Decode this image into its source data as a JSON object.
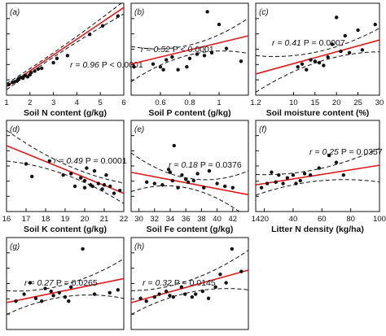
{
  "chart_data": [
    {
      "panel": "(a)",
      "type": "scatter",
      "xlabel": "Soil N content (g/kg)",
      "xlim": [
        1,
        6
      ],
      "xticks": [
        1,
        2,
        3,
        4,
        5,
        6
      ],
      "ylim": [
        0,
        6.5
      ],
      "annotation": {
        "r": "r = 0.96",
        "p": "P < 0.0001"
      },
      "fit": {
        "x0": 1,
        "y0": 0.6,
        "x1": 6,
        "y1": 6.2
      },
      "ci": {
        "edge": 0.45,
        "center": 0.15,
        "xc": 2.6
      },
      "points": [
        [
          1.1,
          0.75
        ],
        [
          1.25,
          0.9
        ],
        [
          1.35,
          0.95
        ],
        [
          1.45,
          1.0
        ],
        [
          1.5,
          1.15
        ],
        [
          1.6,
          1.25
        ],
        [
          1.7,
          1.2
        ],
        [
          1.75,
          1.35
        ],
        [
          1.8,
          1.4
        ],
        [
          1.9,
          1.3
        ],
        [
          2.0,
          1.45
        ],
        [
          2.05,
          1.6
        ],
        [
          2.2,
          1.7
        ],
        [
          2.35,
          1.85
        ],
        [
          2.5,
          1.9
        ],
        [
          3.0,
          2.3
        ],
        [
          3.15,
          2.6
        ],
        [
          3.6,
          2.8
        ],
        [
          4.55,
          4.3
        ],
        [
          5.1,
          4.9
        ],
        [
          5.75,
          5.6
        ]
      ]
    },
    {
      "panel": "(b)",
      "type": "scatter",
      "xlabel": "Soil P content (g/kg)",
      "xlim": [
        0.4,
        1.2
      ],
      "xticks": [
        0.6,
        0.8,
        1.0
      ],
      "xtick_labels": [
        "0.6",
        "0.8",
        "1"
      ],
      "ylim": [
        0,
        6.5
      ],
      "annotation": {
        "r": "r = 0.52",
        "p": "P < 0.0001"
      },
      "fit": {
        "x0": 0.4,
        "y0": 2.2,
        "x1": 1.2,
        "y1": 4.2
      },
      "ci": {
        "edge": 1.25,
        "center": 0.35,
        "xc": 0.8
      },
      "points": [
        [
          0.42,
          2.0
        ],
        [
          0.55,
          2.2
        ],
        [
          0.6,
          2.0
        ],
        [
          0.62,
          1.8
        ],
        [
          0.64,
          2.5
        ],
        [
          0.68,
          2.7
        ],
        [
          0.72,
          1.8
        ],
        [
          0.78,
          2.0
        ],
        [
          0.8,
          2.6
        ],
        [
          0.85,
          2.9
        ],
        [
          0.9,
          2.8
        ],
        [
          0.92,
          5.9
        ],
        [
          0.95,
          3.0
        ],
        [
          1.0,
          5.0
        ],
        [
          1.05,
          3.3
        ],
        [
          1.15,
          2.4
        ]
      ]
    },
    {
      "panel": "(c)",
      "type": "scatter",
      "xlabel": "Soil moisture content (%)",
      "xlim": [
        1.2,
        30
      ],
      "xticks": [
        10,
        15,
        20,
        25,
        30
      ],
      "xtick_labels": [
        "10",
        "15",
        "20",
        "25",
        "30"
      ],
      "extra_tick_labels": [
        "1.2"
      ],
      "ylim": [
        0,
        6.5
      ],
      "annotation": {
        "r": "r = 0.41",
        "p": "P = 0.0007"
      },
      "fit": {
        "x0": 1.2,
        "y0": 1.5,
        "x1": 30,
        "y1": 3.9
      },
      "ci": {
        "edge": 1.3,
        "center": 0.35,
        "xc": 18
      },
      "points": [
        [
          11,
          2.0
        ],
        [
          12,
          2.2
        ],
        [
          13,
          1.8
        ],
        [
          14,
          2.5
        ],
        [
          15,
          2.4
        ],
        [
          16,
          2.3
        ],
        [
          17,
          2.1
        ],
        [
          18,
          2.7
        ],
        [
          19,
          3.6
        ],
        [
          20,
          5.5
        ],
        [
          21,
          3.1
        ],
        [
          22,
          4.2
        ],
        [
          23,
          3.0
        ],
        [
          25,
          4.6
        ],
        [
          26,
          3.2
        ],
        [
          29,
          5.0
        ]
      ]
    },
    {
      "panel": "(d)",
      "type": "scatter",
      "xlabel": "Soil K content (g/kg)",
      "xlim": [
        16,
        22
      ],
      "xticks": [
        16,
        17,
        18,
        19,
        20,
        21,
        22
      ],
      "ylim": [
        0,
        6.5
      ],
      "annotation": {
        "r": "r = 0.49",
        "p": "P = 0.0001"
      },
      "fit": {
        "x0": 16,
        "y0": 4.7,
        "x1": 22,
        "y1": 1.3
      },
      "ci": {
        "edge": 1.1,
        "center": 0.35,
        "xc": 19.5
      },
      "points": [
        [
          17.0,
          3.4
        ],
        [
          17.3,
          2.5
        ],
        [
          18.2,
          3.6
        ],
        [
          18.9,
          2.6
        ],
        [
          19.3,
          2.7
        ],
        [
          19.5,
          1.8
        ],
        [
          19.8,
          2.4
        ],
        [
          20.0,
          2.2
        ],
        [
          20.1,
          3.1
        ],
        [
          20.3,
          1.9
        ],
        [
          20.5,
          2.9
        ],
        [
          20.7,
          2.0
        ],
        [
          20.9,
          1.6
        ],
        [
          21.1,
          2.6
        ],
        [
          21.3,
          1.8
        ],
        [
          21.5,
          1.3
        ],
        [
          21.8,
          1.5
        ],
        [
          20.4,
          1.8
        ],
        [
          20.0,
          1.7
        ],
        [
          21.0,
          1.9
        ]
      ]
    },
    {
      "panel": "(e)",
      "type": "scatter",
      "xlabel": "Soil Fe content (g/kg)",
      "xlim": [
        29,
        44
      ],
      "xticks": [
        30,
        32,
        34,
        36,
        38,
        40,
        42
      ],
      "ylim": [
        0,
        6.5
      ],
      "annotation": {
        "r": "r = 0.18",
        "p": "P = 0.0376"
      },
      "fit": {
        "x0": 29,
        "y0": 2.8,
        "x1": 44,
        "y1": 1.2
      },
      "ci": {
        "edge": 1.7,
        "center": 0.35,
        "xc": 36
      },
      "points": [
        [
          31.0,
          2.1
        ],
        [
          32.0,
          2.0
        ],
        [
          33.0,
          1.9
        ],
        [
          33.8,
          3.0
        ],
        [
          34.0,
          2.8
        ],
        [
          34.3,
          2.2
        ],
        [
          35.0,
          1.7
        ],
        [
          35.5,
          2.6
        ],
        [
          36.0,
          2.3
        ],
        [
          36.3,
          2.1
        ],
        [
          37.0,
          2.2
        ],
        [
          37.5,
          2.7
        ],
        [
          38.3,
          1.7
        ],
        [
          39.0,
          2.9
        ],
        [
          40.0,
          2.0
        ],
        [
          41.0,
          1.8
        ],
        [
          42.0,
          1.7
        ],
        [
          34.5,
          4.7
        ]
      ]
    },
    {
      "panel": "(f)",
      "type": "scatter",
      "xlabel": "Litter N density (kg/ha)",
      "xlim": [
        14,
        100
      ],
      "xticks": [
        14,
        20,
        40,
        60,
        80,
        100
      ],
      "xtick_labels": [
        "14",
        "20",
        "40",
        "60",
        "80",
        "100"
      ],
      "ylim": [
        0,
        6.5
      ],
      "annotation": {
        "r": "r = 0.25",
        "p": "P = 0.0357"
      },
      "fit": {
        "x0": 14,
        "y0": 1.9,
        "x1": 100,
        "y1": 3.3
      },
      "ci": {
        "edge": 1.2,
        "center": 0.4,
        "xc": 48
      },
      "points": [
        [
          18,
          1.7
        ],
        [
          22,
          2.0
        ],
        [
          25,
          2.8
        ],
        [
          28,
          2.1
        ],
        [
          30,
          2.6
        ],
        [
          33,
          2.0
        ],
        [
          36,
          2.4
        ],
        [
          40,
          2.6
        ],
        [
          42,
          2.0
        ],
        [
          45,
          2.2
        ],
        [
          48,
          2.7
        ],
        [
          52,
          2.6
        ],
        [
          58,
          3.1
        ],
        [
          65,
          4.0
        ],
        [
          70,
          3.5
        ],
        [
          75,
          2.6
        ]
      ]
    },
    {
      "panel": "(g)",
      "type": "scatter",
      "xlabel": "",
      "xlim": [
        0,
        10
      ],
      "xticks": [],
      "ylim": [
        0,
        6.5
      ],
      "annotation": {
        "r": "r = 0.27",
        "p": "P = 0.0265"
      },
      "fit": {
        "x0": 0,
        "y0": 1.9,
        "x1": 10,
        "y1": 3.6
      },
      "ci": {
        "edge": 1.4,
        "center": 0.4,
        "xc": 4
      },
      "points": [
        [
          0.8,
          2.0
        ],
        [
          1.5,
          2.5
        ],
        [
          2.0,
          3.3
        ],
        [
          2.5,
          2.2
        ],
        [
          3.0,
          2.0
        ],
        [
          3.3,
          2.9
        ],
        [
          3.8,
          2.7
        ],
        [
          4.0,
          2.4
        ],
        [
          4.5,
          2.6
        ],
        [
          5.0,
          2.3
        ],
        [
          5.3,
          2.0
        ],
        [
          5.5,
          3.0
        ],
        [
          6.5,
          5.7
        ],
        [
          7.5,
          2.5
        ],
        [
          8.8,
          2.6
        ],
        [
          9.5,
          2.8
        ]
      ]
    },
    {
      "panel": "(h)",
      "type": "scatter",
      "xlabel": "",
      "xlim": [
        0,
        10
      ],
      "xticks": [],
      "ylim": [
        0,
        6.5
      ],
      "annotation": {
        "r": "r = 0.32",
        "p": "P = 0.0145"
      },
      "fit": {
        "x0": 0,
        "y0": 1.9,
        "x1": 10,
        "y1": 4.2
      },
      "ci": {
        "edge": 1.4,
        "center": 0.4,
        "xc": 4
      },
      "points": [
        [
          0.8,
          2.2
        ],
        [
          1.3,
          2.0
        ],
        [
          2.0,
          2.3
        ],
        [
          2.4,
          2.5
        ],
        [
          3.0,
          2.7
        ],
        [
          3.3,
          2.4
        ],
        [
          3.6,
          2.3
        ],
        [
          4.3,
          3.0
        ],
        [
          4.6,
          2.5
        ],
        [
          5.2,
          2.3
        ],
        [
          5.5,
          2.5
        ],
        [
          6.1,
          2.7
        ],
        [
          6.6,
          2.2
        ],
        [
          7.2,
          3.0
        ],
        [
          7.6,
          3.9
        ],
        [
          8.1,
          3.3
        ],
        [
          8.6,
          5.7
        ],
        [
          9.4,
          4.1
        ]
      ]
    }
  ]
}
